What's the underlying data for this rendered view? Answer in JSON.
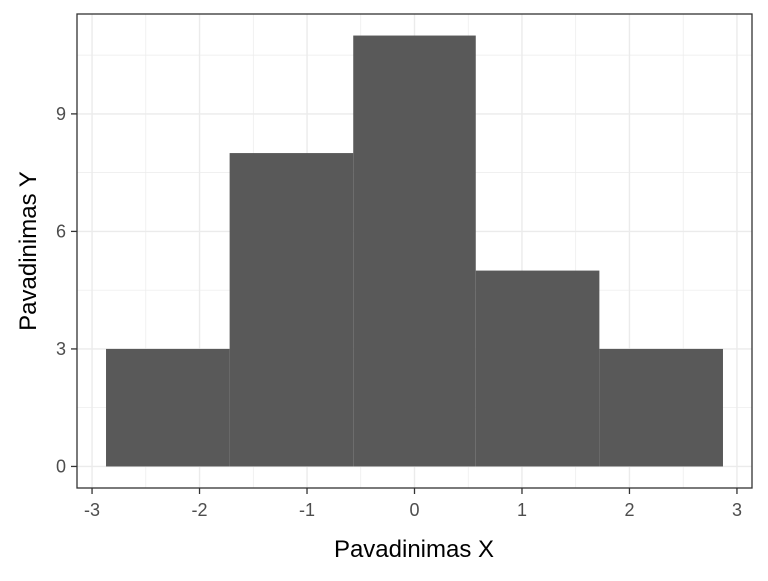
{
  "chart_data": {
    "type": "bar",
    "subtype": "histogram",
    "xlabel": "Pavadinimas X",
    "ylabel": "Pavadinimas Y",
    "xlim": [
      -3.14,
      3.14
    ],
    "ylim": [
      -0.55,
      11.55
    ],
    "xticks": [
      -3,
      -2,
      -1,
      0,
      1,
      2,
      3
    ],
    "xtick_labels": [
      "-3",
      "-2",
      "-1",
      "0",
      "1",
      "2",
      "3"
    ],
    "yticks": [
      0,
      3,
      6,
      9
    ],
    "ytick_labels": [
      "0",
      "3",
      "6",
      "9"
    ],
    "bins": [
      {
        "x0": -2.87,
        "x1": -1.72,
        "count": 3
      },
      {
        "x0": -1.72,
        "x1": -0.57,
        "count": 8
      },
      {
        "x0": -0.57,
        "x1": 0.57,
        "count": 11
      },
      {
        "x0": 0.57,
        "x1": 1.72,
        "count": 5
      },
      {
        "x0": 1.72,
        "x1": 2.87,
        "count": 3
      }
    ],
    "bar_color": "#595959",
    "panel_background": "#ffffff",
    "grid": true,
    "grid_color": "#ebebeb",
    "border_color": "#333333",
    "legend": "none"
  }
}
